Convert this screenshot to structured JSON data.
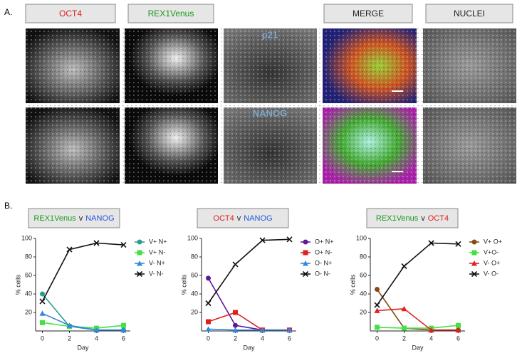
{
  "panel_a": {
    "label": "A.",
    "columns": [
      "OCT4",
      "REX1Venus",
      "MERGE",
      "NUCLEI"
    ],
    "overlays": [
      "p21",
      "NANOG"
    ]
  },
  "panel_b": {
    "label": "B."
  },
  "chart_data": [
    {
      "type": "line",
      "title_segments": [
        "REX1Venus",
        "v",
        "NANOG"
      ],
      "title_colors": [
        "#1a9a1a",
        "#222222",
        "#2255dd"
      ],
      "x": [
        0,
        2,
        4,
        6
      ],
      "xlim": [
        -0.5,
        6.5
      ],
      "xticks": [
        0,
        2,
        4,
        6
      ],
      "ylim": [
        0,
        100
      ],
      "yticks": [
        20,
        40,
        60,
        80,
        100
      ],
      "xlabel": "Day",
      "ylabel": "% cells",
      "series": [
        {
          "name": "V+ N+",
          "color": "#2a9d8f",
          "marker": "circle",
          "values": [
            40,
            5,
            1,
            1
          ]
        },
        {
          "name": "V+ N-",
          "color": "#44e044",
          "marker": "square",
          "values": [
            9,
            5,
            3,
            6
          ]
        },
        {
          "name": "V- N+",
          "color": "#3388dd",
          "marker": "triangle",
          "values": [
            19,
            6,
            1,
            1
          ]
        },
        {
          "name": "V- N-",
          "color": "#111111",
          "marker": "x",
          "values": [
            32,
            88,
            95,
            93
          ]
        }
      ]
    },
    {
      "type": "line",
      "title_segments": [
        "OCT4",
        "v",
        "NANOG"
      ],
      "title_colors": [
        "#e02020",
        "#222222",
        "#2255dd"
      ],
      "x": [
        0,
        2,
        4,
        6
      ],
      "xlim": [
        -0.5,
        6.5
      ],
      "xticks": [
        0,
        2,
        4,
        6
      ],
      "ylim": [
        0,
        100
      ],
      "yticks": [
        20,
        40,
        60,
        80,
        100
      ],
      "xlabel": "Day",
      "ylabel": "% cells",
      "series": [
        {
          "name": "O+ N+",
          "color": "#5b1a9a",
          "marker": "circle",
          "values": [
            57,
            6,
            1,
            1
          ]
        },
        {
          "name": "O+ N-",
          "color": "#e02020",
          "marker": "square",
          "values": [
            10,
            20,
            1,
            1
          ]
        },
        {
          "name": "O- N+",
          "color": "#3388dd",
          "marker": "triangle",
          "values": [
            2,
            1,
            1,
            1
          ]
        },
        {
          "name": "O- N-",
          "color": "#111111",
          "marker": "x",
          "values": [
            30,
            72,
            98,
            99
          ]
        }
      ]
    },
    {
      "type": "line",
      "title_segments": [
        "REX1Venus",
        "v",
        "OCT4"
      ],
      "title_colors": [
        "#1a9a1a",
        "#222222",
        "#e02020"
      ],
      "x": [
        0,
        2,
        4,
        6
      ],
      "xlim": [
        -0.5,
        6.5
      ],
      "xticks": [
        0,
        2,
        4,
        6
      ],
      "ylim": [
        0,
        100
      ],
      "yticks": [
        20,
        40,
        60,
        80,
        100
      ],
      "xlabel": "Day",
      "ylabel": "% cells",
      "series": [
        {
          "name": "V+ O+",
          "color": "#8b4a14",
          "marker": "circle",
          "values": [
            45,
            3,
            1,
            1
          ]
        },
        {
          "name": "V+O-",
          "color": "#44e044",
          "marker": "square",
          "values": [
            4,
            3,
            3,
            6
          ]
        },
        {
          "name": "V- O+",
          "color": "#e02020",
          "marker": "triangle",
          "values": [
            22,
            24,
            1,
            1
          ]
        },
        {
          "name": "V- O-",
          "color": "#111111",
          "marker": "x",
          "values": [
            28,
            70,
            95,
            94
          ]
        }
      ]
    }
  ]
}
